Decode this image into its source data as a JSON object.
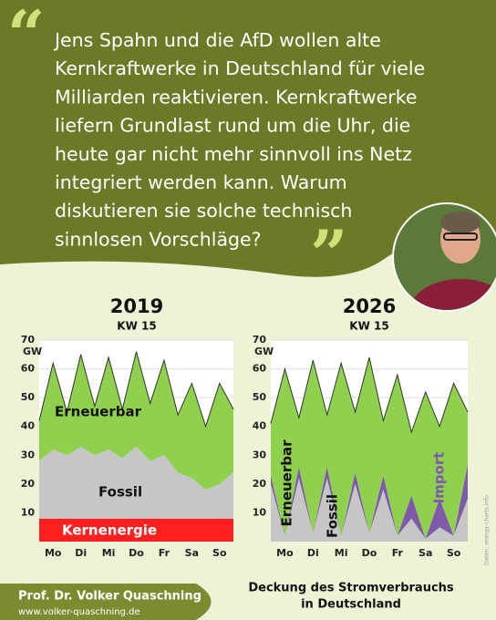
{
  "quote": {
    "open": "“",
    "close": "”",
    "lines": [
      "Jens Spahn und die AfD wollen alte",
      "Kernkraftwerke in Deutschland für viele",
      "Milliarden reaktivieren. Kernkraftwerke",
      "liefern Grundlast rund um die Uhr, die",
      "heute gar nicht mehr sinnvoll ins Netz",
      "integriert werden kann. Warum",
      "diskutieren sie solche technisch",
      "sinnlosen Vorschläge?"
    ]
  },
  "chart_data": [
    {
      "type": "stacked-area",
      "title": "2019",
      "subtitle": "KW 15",
      "y_unit": "GW",
      "x": [
        0,
        0.5,
        1,
        1.5,
        2,
        2.5,
        3,
        3.5,
        4,
        4.5,
        5,
        5.5,
        6,
        6.5,
        7
      ],
      "xlim": [
        0,
        7
      ],
      "xticks": [
        {
          "value": 0.5,
          "label": "Mo"
        },
        {
          "value": 1.5,
          "label": "Di"
        },
        {
          "value": 2.5,
          "label": "Mi"
        },
        {
          "value": 3.5,
          "label": "Do"
        },
        {
          "value": 4.5,
          "label": "Fr"
        },
        {
          "value": 5.5,
          "label": "Sa"
        },
        {
          "value": 6.5,
          "label": "So"
        }
      ],
      "ylim": [
        0,
        70
      ],
      "yticks": [
        10,
        20,
        30,
        40,
        50,
        60,
        70
      ],
      "grid": true,
      "series": [
        {
          "name": "Kernenergie",
          "color": "#ff1f1f",
          "values": [
            8,
            8,
            8,
            8,
            8,
            8,
            8,
            8,
            8,
            8,
            8,
            8,
            8,
            8,
            8
          ]
        },
        {
          "name": "Fossil",
          "color": "#c6c6c6",
          "values": [
            20,
            24,
            22,
            25,
            22,
            24,
            21,
            25,
            20,
            22,
            16,
            14,
            10,
            12,
            16
          ]
        },
        {
          "name": "Erneuerbar",
          "color": "#8fd14f",
          "values": [
            14,
            30,
            15,
            32,
            17,
            32,
            17,
            33,
            20,
            33,
            20,
            33,
            22,
            35,
            22
          ]
        }
      ]
    },
    {
      "type": "stacked-area",
      "title": "2026",
      "subtitle": "KW 15",
      "y_unit": "GW",
      "x": [
        0,
        0.5,
        1,
        1.5,
        2,
        2.5,
        3,
        3.5,
        4,
        4.5,
        5,
        5.5,
        6,
        6.5,
        7
      ],
      "xlim": [
        0,
        7
      ],
      "xticks": [
        {
          "value": 0.5,
          "label": "Mo"
        },
        {
          "value": 1.5,
          "label": "Di"
        },
        {
          "value": 2.5,
          "label": "Mi"
        },
        {
          "value": 3.5,
          "label": "Do"
        },
        {
          "value": 4.5,
          "label": "Fr"
        },
        {
          "value": 5.5,
          "label": "Sa"
        },
        {
          "value": 6.5,
          "label": "So"
        }
      ],
      "ylim": [
        0,
        70
      ],
      "yticks": [
        10,
        20,
        30,
        40,
        50,
        60,
        70
      ],
      "grid": true,
      "series": [
        {
          "name": "Fossil",
          "color": "#c6c6c6",
          "values": [
            20,
            2,
            22,
            3,
            22,
            2,
            20,
            3,
            18,
            2,
            8,
            1,
            5,
            2,
            15
          ]
        },
        {
          "name": "Import",
          "color": "#7e5aa8",
          "values": [
            3,
            0,
            4,
            0,
            4,
            0,
            4,
            0,
            5,
            0,
            8,
            0,
            10,
            0,
            12
          ]
        },
        {
          "name": "Erneuerbar",
          "color": "#8fd14f",
          "values": [
            18,
            58,
            17,
            60,
            18,
            60,
            21,
            61,
            19,
            56,
            22,
            51,
            25,
            53,
            18
          ]
        }
      ]
    }
  ],
  "footer": {
    "name": "Prof. Dr. Volker Quaschning",
    "url": "www.volker-quaschning.de"
  },
  "caption": [
    "Deckung des Stromverbrauchs",
    "in Deutschland"
  ],
  "source": "Daten: energy-charts.info"
}
